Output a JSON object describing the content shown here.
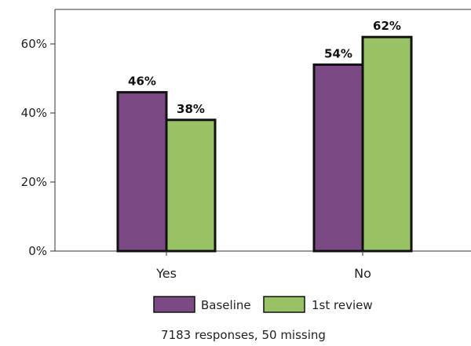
{
  "chart_data": {
    "type": "bar",
    "categories": [
      "Yes",
      "No"
    ],
    "series": [
      {
        "name": "Baseline",
        "values": [
          46,
          54
        ],
        "color": "#7b4a85"
      },
      {
        "name": "1st review",
        "values": [
          38,
          62
        ],
        "color": "#98c365"
      }
    ],
    "value_labels": [
      [
        "46%",
        "54%"
      ],
      [
        "38%",
        "62%"
      ]
    ],
    "yticks": [
      0,
      20,
      40,
      60
    ],
    "ytick_labels": [
      "0%",
      "20%",
      "40%",
      "60%"
    ],
    "ylim": [
      0,
      70
    ],
    "grid": false,
    "legend": "bottom",
    "footnote": "7183 responses, 50 missing"
  }
}
